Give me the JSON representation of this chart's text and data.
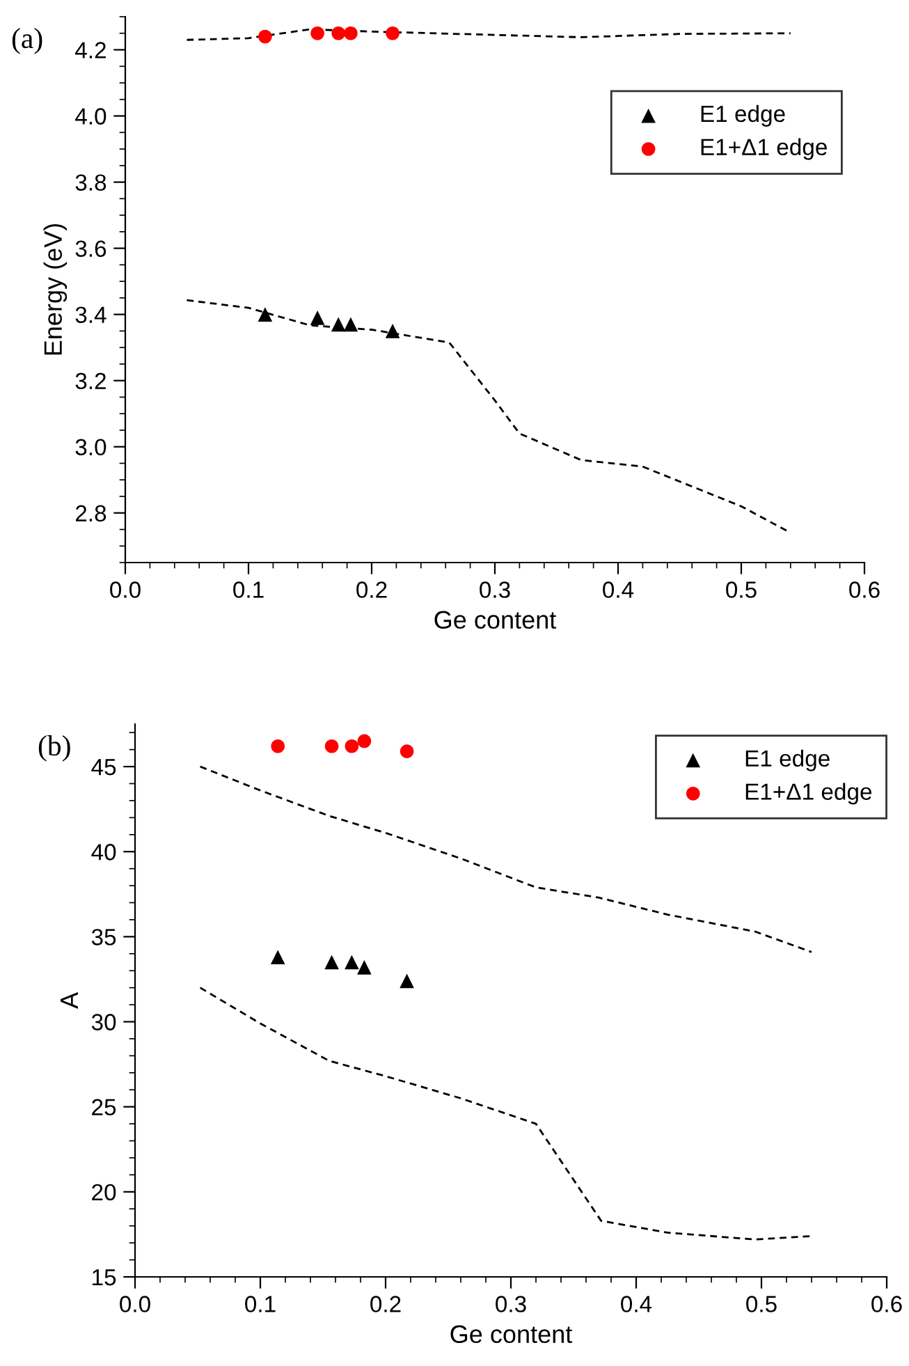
{
  "chart_data": [
    {
      "type": "scatter",
      "annotations": [
        "(a)"
      ],
      "xlabel": "Ge content",
      "ylabel": "Energy (eV)",
      "xlim": [
        0.0,
        0.6
      ],
      "xticks": [
        {
          "value": 0.0,
          "label": "0.0"
        },
        0.1,
        0.2,
        0.3,
        0.4,
        0.5,
        0.6
      ],
      "ylim": [
        2.65,
        4.3
      ],
      "yticks": [
        2.8,
        {
          "value": 3.0,
          "label": "3.0"
        },
        3.2,
        3.4,
        3.6,
        3.8,
        {
          "value": 4.0,
          "label": "4.0"
        },
        4.2
      ],
      "legend": "top right",
      "series": [
        {
          "type": "line",
          "color": "#000000",
          "line_style": "dashed",
          "marker": "none",
          "x": [
            0.05,
            0.1,
            0.15,
            0.2,
            0.3,
            0.37,
            0.45,
            0.54
          ],
          "values": [
            4.23,
            4.235,
            4.262,
            4.255,
            4.245,
            4.238,
            4.248,
            4.25
          ]
        },
        {
          "type": "line",
          "color": "#000000",
          "line_style": "dashed",
          "marker": "none",
          "x": [
            0.05,
            0.1,
            0.15,
            0.2,
            0.263,
            0.3,
            0.32,
            0.37,
            0.42,
            0.5,
            0.54
          ],
          "values": [
            3.443,
            3.42,
            3.367,
            3.354,
            3.315,
            3.14,
            3.04,
            2.96,
            2.94,
            2.82,
            2.74
          ]
        },
        {
          "name": "E1 edge",
          "color": "#000000",
          "marker": "triangle",
          "x": [
            0.1135,
            0.156,
            0.173,
            0.183,
            0.217
          ],
          "values": [
            3.4,
            3.39,
            3.37,
            3.37,
            3.35
          ]
        },
        {
          "name": "E1+Δ1 edge",
          "color": "#ff0000",
          "marker": "circle",
          "x": [
            0.1135,
            0.156,
            0.173,
            0.183,
            0.217
          ],
          "values": [
            4.24,
            4.25,
            4.25,
            4.25,
            4.25
          ]
        }
      ]
    },
    {
      "type": "scatter",
      "annotations": [
        "(b)"
      ],
      "xlabel": "Ge content",
      "ylabel": "A",
      "xlim": [
        0.0,
        0.6
      ],
      "xticks": [
        {
          "value": 0.0,
          "label": "0.0"
        },
        0.1,
        0.2,
        0.3,
        0.4,
        0.5,
        0.6
      ],
      "ylim": [
        15,
        47.5
      ],
      "yticks": [
        15,
        20,
        25,
        30,
        35,
        40,
        45
      ],
      "legend": "top right",
      "series": [
        {
          "type": "line",
          "color": "#000000",
          "line_style": "dashed",
          "marker": "none",
          "x": [
            0.052,
            0.1,
            0.155,
            0.2,
            0.26,
            0.32,
            0.37,
            0.425,
            0.495,
            0.54
          ],
          "values": [
            45.0,
            43.6,
            42.1,
            41.1,
            39.6,
            37.9,
            37.3,
            36.3,
            35.3,
            34.1
          ]
        },
        {
          "type": "line",
          "color": "#000000",
          "line_style": "dashed",
          "marker": "none",
          "x": [
            0.052,
            0.1,
            0.155,
            0.2,
            0.26,
            0.32,
            0.372,
            0.425,
            0.495,
            0.54
          ],
          "values": [
            32.0,
            29.9,
            27.7,
            26.8,
            25.5,
            24.0,
            18.3,
            17.6,
            17.2,
            17.4
          ]
        },
        {
          "name": "E1 edge",
          "color": "#000000",
          "marker": "triangle",
          "x": [
            0.114,
            0.157,
            0.173,
            0.183,
            0.217
          ],
          "values": [
            33.8,
            33.5,
            33.5,
            33.2,
            32.4
          ]
        },
        {
          "name": "E1+Δ1 edge",
          "color": "#ff0000",
          "marker": "circle",
          "x": [
            0.114,
            0.157,
            0.173,
            0.183,
            0.217
          ],
          "values": [
            46.2,
            46.2,
            46.2,
            46.5,
            45.9
          ]
        }
      ]
    }
  ]
}
